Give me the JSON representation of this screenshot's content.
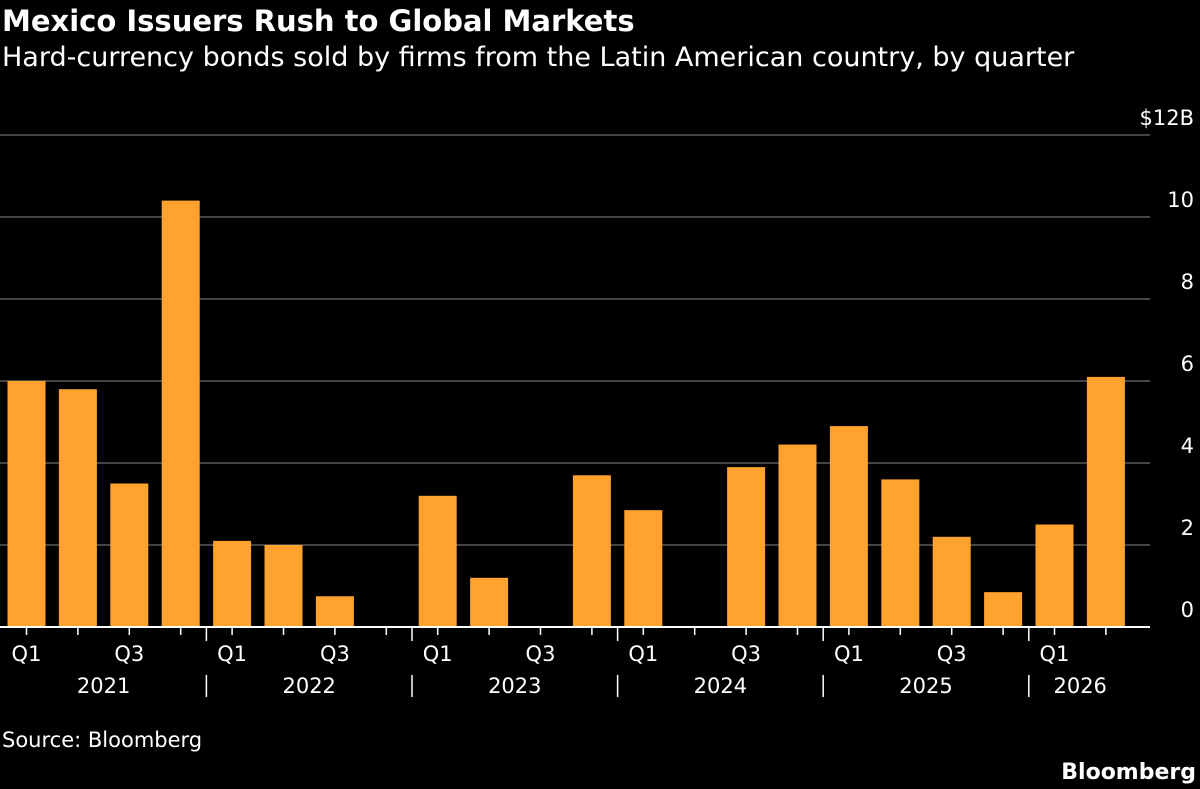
{
  "title": "Mexico Issuers Rush to Global Markets",
  "subtitle": "Hard-currency bonds sold by firms from the Latin American country, by quarter",
  "source": "Source: Bloomberg",
  "brand": "Bloomberg",
  "colors": {
    "background": "#000000",
    "bar": "#FFA22E",
    "grid": "#5a5a5a",
    "text": "#ffffff"
  },
  "chart_data": {
    "type": "bar",
    "categories": [
      "2021 Q1",
      "2021 Q2",
      "2021 Q3",
      "2021 Q4",
      "2022 Q1",
      "2022 Q2",
      "2022 Q3",
      "2022 Q4",
      "2023 Q1",
      "2023 Q2",
      "2023 Q3",
      "2023 Q4",
      "2024 Q1",
      "2024 Q2",
      "2024 Q3",
      "2024 Q4",
      "2025 Q1",
      "2025 Q2",
      "2025 Q3",
      "2025 Q4",
      "2026 Q1",
      "2026 Q2"
    ],
    "values": [
      6.0,
      5.8,
      3.5,
      10.4,
      2.1,
      2.0,
      0.75,
      0,
      3.2,
      1.2,
      0,
      3.7,
      2.85,
      0,
      3.9,
      4.45,
      4.9,
      3.6,
      2.2,
      0.85,
      2.5,
      6.1
    ],
    "ylim": [
      0,
      12
    ],
    "yticks": [
      0,
      2,
      4,
      6,
      8,
      10,
      12
    ],
    "ytick_labels": [
      "0",
      "2",
      "4",
      "6",
      "8",
      "10",
      "$12B"
    ],
    "xtick_labels": [
      "Q1",
      "",
      "Q3",
      "",
      "Q1",
      "",
      "Q3",
      "",
      "Q1",
      "",
      "Q3",
      "",
      "Q1",
      "",
      "Q3",
      "",
      "Q1",
      "",
      "Q3",
      "",
      "Q1",
      ""
    ],
    "year_labels": [
      "2021",
      "2022",
      "2023",
      "2024",
      "2025",
      "2026"
    ],
    "title": "Mexico Issuers Rush to Global Markets",
    "xlabel": "",
    "ylabel": "",
    "grid": true
  }
}
